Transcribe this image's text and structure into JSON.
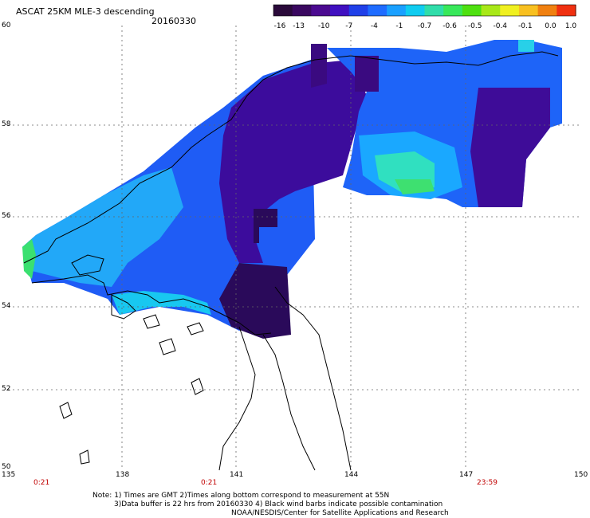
{
  "title": "ASCAT 25KM MLE-3 descending",
  "date": "20160330",
  "colorbar": {
    "colors": [
      "#2a0a3a",
      "#3a0860",
      "#4b0a90",
      "#4010c0",
      "#2040e8",
      "#1f6cff",
      "#1aa0ff",
      "#10ccf0",
      "#30ddaa",
      "#38e85a",
      "#4ee010",
      "#a8e818",
      "#f0f020",
      "#f8c020",
      "#f08010",
      "#f03010"
    ],
    "tick_labels": [
      "-16",
      "-13",
      "-10",
      "-7",
      "-4",
      "-1",
      "-0.7",
      "-0.6",
      "-0.5",
      "-0.4",
      "-0.1",
      "0.0",
      "1.0"
    ]
  },
  "axes": {
    "lat_labels": [
      "60",
      "58",
      "56",
      "54",
      "52",
      "50"
    ],
    "lon_labels": [
      "135",
      "138",
      "141",
      "144",
      "147",
      "150"
    ]
  },
  "time_labels": [
    "0:21",
    "0:21",
    "23:59"
  ],
  "notes": {
    "line1": "Note: 1) Times are GMT 2)Times along bottom correspond to measurement at 55N",
    "line2": "3)Data buffer is 22 hrs from 20160330 4) Black wind barbs indicate possible contamination",
    "line3": "NOAA/NESDIS/Center for Satellite Applications and Research"
  }
}
